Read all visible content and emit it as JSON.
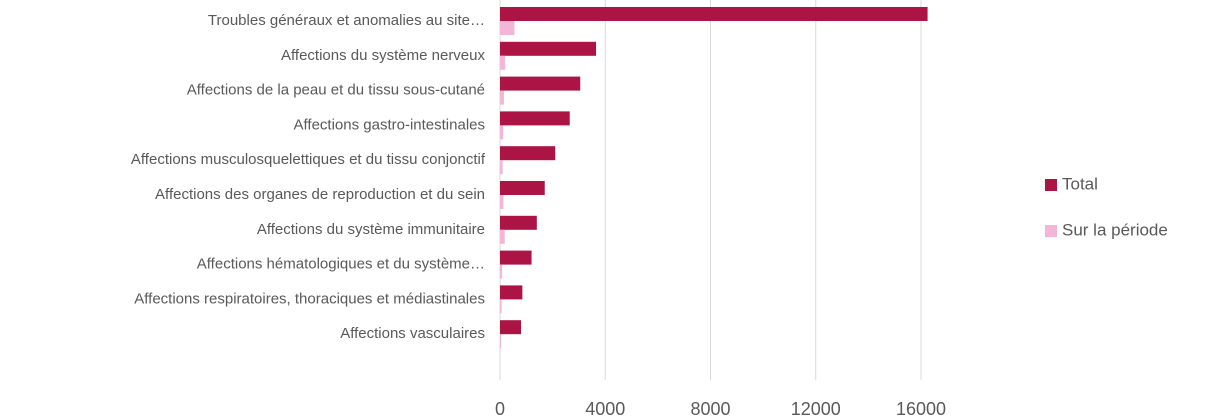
{
  "chart_data": {
    "type": "barh",
    "categories": [
      "Troubles généraux et anomalies au site…",
      "Affections du système nerveux",
      "Affections de la peau et du tissu sous-cutané",
      "Affections gastro-intestinales",
      "Affections musculosquelettiques et du tissu conjonctif",
      "Affections des organes de reproduction et du sein",
      "Affections du système immunitaire",
      "Affections hématologiques et du système…",
      "Affections respiratoires, thoraciques et médiastinales",
      "Affections vasculaires"
    ],
    "series": [
      {
        "name": "Total",
        "color": "#ac1446",
        "values": [
          16250,
          3650,
          3050,
          2650,
          2100,
          1700,
          1400,
          1200,
          850,
          800
        ]
      },
      {
        "name": "Sur la période",
        "color": "#f4b6d6",
        "values": [
          550,
          200,
          150,
          120,
          100,
          130,
          180,
          80,
          60,
          40
        ]
      }
    ],
    "xlim": [
      0,
      16000
    ],
    "xticks": [
      0,
      4000,
      8000,
      12000,
      16000
    ],
    "grid": true,
    "legend": "right"
  }
}
